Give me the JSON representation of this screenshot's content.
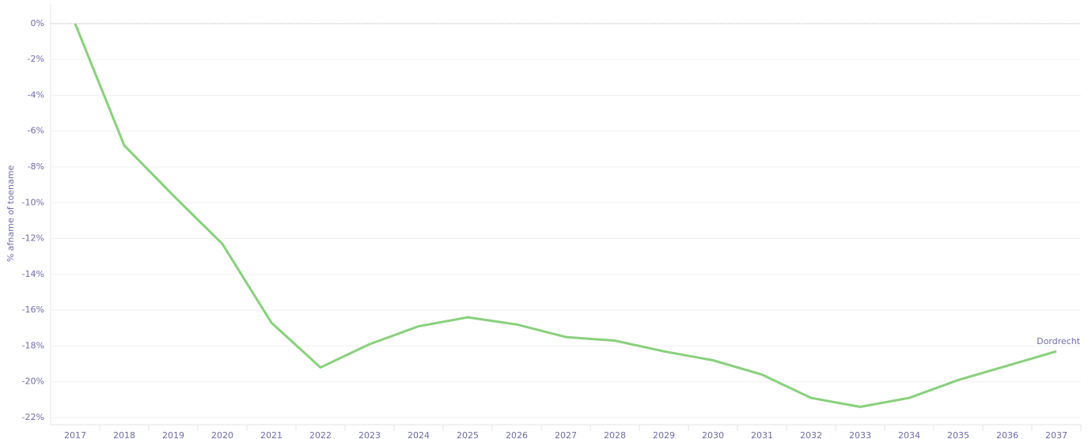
{
  "chart_data": {
    "type": "line",
    "y_label": "% afname of toename",
    "categories": [
      "2017",
      "2018",
      "2019",
      "2020",
      "2021",
      "2022",
      "2023",
      "2024",
      "2025",
      "2026",
      "2027",
      "2028",
      "2029",
      "2030",
      "2031",
      "2032",
      "2033",
      "2034",
      "2035",
      "2036",
      "2037"
    ],
    "series": [
      {
        "name": "Dordrecht",
        "color": "#88d07c",
        "values": [
          0,
          -6.8,
          -9.6,
          -12.3,
          -16.7,
          -19.2,
          -17.9,
          -16.9,
          -16.4,
          -16.8,
          -17.5,
          -17.7,
          -18.3,
          -18.8,
          -19.6,
          -20.9,
          -21.4,
          -20.9,
          -19.9,
          -19.1,
          -18.3
        ]
      }
    ],
    "ylim": [
      -22.4,
      1.1
    ],
    "yticks": [
      {
        "value": 0,
        "label": "0%"
      },
      {
        "value": -2,
        "label": "-2%"
      },
      {
        "value": -4,
        "label": "-4%"
      },
      {
        "value": -6,
        "label": "-6%"
      },
      {
        "value": -8,
        "label": "-8%"
      },
      {
        "value": -10,
        "label": "-10%"
      },
      {
        "value": -12,
        "label": "-12%"
      },
      {
        "value": -14,
        "label": "-14%"
      },
      {
        "value": -16,
        "label": "-16%"
      },
      {
        "value": -18,
        "label": "-18%"
      },
      {
        "value": -20,
        "label": "-20%"
      },
      {
        "value": -22,
        "label": "-22%"
      }
    ],
    "grid": true
  }
}
